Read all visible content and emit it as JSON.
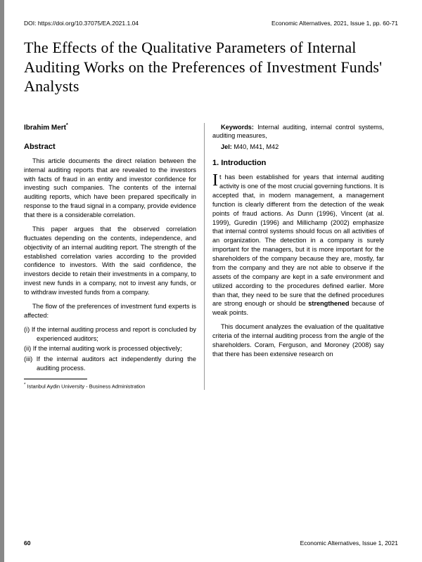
{
  "header": {
    "doi": "DOI: https://doi.org/10.37075/EA.2021.1.04",
    "journal": "Economic Alternatives, 2021, Issue 1, pp. 60-71"
  },
  "title": "The Effects of the Qualitative Parameters of Internal Auditing Works on the Preferences of Investment Funds' Analysts",
  "author": {
    "name": "Ibrahim Mert",
    "marker": "*"
  },
  "abstract": {
    "heading": "Abstract",
    "p1": "This article documents the direct relation between the internal auditing reports that are revealed to the investors with facts of fraud in an entity and investor confidence for investing such companies. The contents of the internal auditing reports, which have been prepared specifically in response to the fraud signal in a company, provide evidence that there is a considerable correlation.",
    "p2": "This paper argues that the observed correlation fluctuates depending on the contents, independence, and objectivity of an internal auditing report. The strength of the established correlation varies according to the provided confidence to investors. With the said confidence, the investors decide to retain their investments in a company, to invest new funds in a company, not to invest any funds, or to withdraw invested funds from a company.",
    "p3": "The flow of the preferences of investment fund experts is affected:",
    "li1": "(i) If the internal auditing process and report is concluded by experienced auditors;",
    "li2": "(ii) If the internal auditing work is processed objectively;",
    "li3": "(iii) If the internal auditors act independently during the auditing process."
  },
  "keywords": {
    "label": "Keywords:",
    "text": " Internal auditing, internal control systems, auditing measures,"
  },
  "jel": {
    "label": "Jel:",
    "text": " M40, M41, M42"
  },
  "intro": {
    "heading": "1. Introduction",
    "dropcap": "I",
    "p1_rest": "t has been established for years that internal auditing activity is one of the most crucial governing functions. It is accepted that, in modern management, a management function is clearly different from the detection of the weak points of fraud actions. As Dunn (1996), Vincent (at al. 1999), Guredin (1996) and Millichamp (2002) emphasize that internal control systems should focus on all activities of an organization. The detection in a company is surely important for the managers, but it is more important for the shareholders of the company because they are, mostly, far from the company and they are not able to observe if the assets of the company are kept in a safe environment and utilized according to the procedures defined earlier. More than that, they need to be sure that the defined procedures are strong enough or should be ",
    "p1_bold": "strengthened",
    "p1_end": " because of weak points.",
    "p2": "This document analyzes the evaluation of the qualitative criteria of the internal auditing process from the angle of the shareholders. Coram, Ferguson, and Moroney (2008) say that there has been extensive research on"
  },
  "footnote": {
    "marker": "*",
    "text": " Istanbul Aydin University - Business Administration"
  },
  "footer": {
    "page": "60",
    "journal": "Economic Alternatives, Issue 1, 2021"
  }
}
